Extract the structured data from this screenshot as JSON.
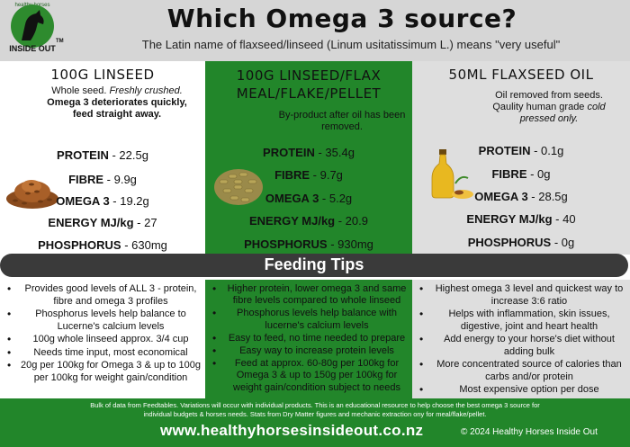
{
  "header": {
    "logo_small": "healthy horses",
    "logo_text": "INSIDE OUT",
    "logo_tm": "TM",
    "title": "Which Omega 3 source?",
    "subtitle": "The Latin name of flaxseed/linseed (Linum usitatissimum L.) means \"very useful\""
  },
  "columns": [
    {
      "title": "100G LINSEED",
      "desc_line1_plain": "Whole seed. ",
      "desc_line1_italic": "Freshly crushed.",
      "desc_bold": "Omega 3 deteriorates quickly, feed straight away.",
      "nutrients": [
        {
          "label": "PROTEIN",
          "value": " - 22.5g"
        },
        {
          "label": "FIBRE",
          "value": " - 9.9g"
        },
        {
          "label": "OMEGA 3",
          "value": " - 19.2g"
        },
        {
          "label": "ENERGY MJ/kg",
          "value": " - 27"
        },
        {
          "label": "PHOSPHORUS",
          "value": " - 630mg"
        }
      ]
    },
    {
      "title_line1": "100G LINSEED/FLAX",
      "title_line2": "MEAL/FLAKE/PELLET",
      "desc": "By-product after oil has been removed.",
      "nutrients": [
        {
          "label": "PROTEIN",
          "value": " - 35.4g"
        },
        {
          "label": "FIBRE",
          "value": " - 9.7g"
        },
        {
          "label": "OMEGA 3",
          "value": " - 5.2g"
        },
        {
          "label": "ENERGY MJ/kg",
          "value": " - 20.9"
        },
        {
          "label": "PHOSPHORUS",
          "value": " - 930mg"
        }
      ]
    },
    {
      "title": "50ML FLAXSEED OIL",
      "desc_plain": "Oil removed from seeds. Qaulity human grade ",
      "desc_italic": "cold pressed only.",
      "nutrients": [
        {
          "label": "PROTEIN",
          "value": " - 0.1g"
        },
        {
          "label": "FIBRE",
          "value": " - 0g"
        },
        {
          "label": "OMEGA 3",
          "value": " - 28.5g"
        },
        {
          "label": "ENERGY MJ/kg",
          "value": " - 40"
        },
        {
          "label": "PHOSPHORUS",
          "value": " - 0g"
        }
      ]
    }
  ],
  "feeding_tips": {
    "title": "Feeding Tips",
    "col1": [
      "Provides good levels of ALL 3 - protein, fibre and omega 3 profiles",
      "Phosphorus levels help balance to Lucerne's calcium levels",
      "100g whole linseed approx. 3/4 cup",
      "Needs time input, most economical",
      "20g per 100kg for Omega 3 & up to 100g per 100kg for weight gain/condition"
    ],
    "col2": [
      "Higher protein, lower omega 3 and same fibre levels compared to whole linseed",
      "Phosphorus levels help balance with lucerne's calcium levels",
      "Easy to feed, no time needed to prepare",
      "Easy way to increase protein levels",
      "Feed at approx. 60-80g per 100kg for Omega 3 & up to 150g per 100kg for weight gain/condition subject to needs"
    ],
    "col3": [
      "Highest omega 3 level and quickest way to increase 3:6 ratio",
      "Helps with inflammation, skin issues, digestive, joint and heart health",
      "Add energy to your horse's diet without adding bulk",
      "More concentrated source of calories than carbs and/or protein",
      "Most expensive option per dose"
    ]
  },
  "footer": {
    "disclaimer_line1": "Bulk of data from Feedtables.  Variations will occur with individual products.  This is an educational resource to help choose the best omega 3 source for",
    "disclaimer_line2": "individual budgets &  horses needs.  Stats from Dry Matter figures and mechanic extraction ony for meal/flake/pellet.",
    "url": "www.healthyhorsesinsideout.co.nz",
    "copyright": "© 2024 Healthy Horses Inside Out"
  },
  "colors": {
    "green": "#22862a",
    "grey": "#dedede",
    "header_grey": "#d6d6d6",
    "dark_bar": "#3a3a3a"
  },
  "icons": [
    "horse-logo-icon",
    "linseed-pile-icon",
    "pellet-pile-icon",
    "oil-bottle-icon"
  ]
}
